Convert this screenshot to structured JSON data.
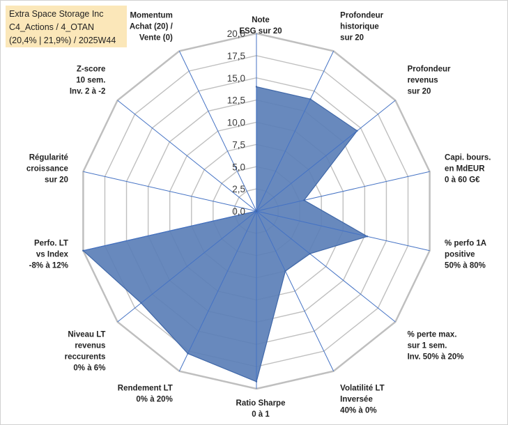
{
  "info": {
    "line1": "Extra Space Storage Inc",
    "line2": "C4_Actions / 4_OTAN",
    "line3": "(20,4% | 21,9%) / 2025W44"
  },
  "chart_data": {
    "type": "radar",
    "title": "",
    "rlim": [
      0,
      20
    ],
    "ticks": [
      "0,0",
      "2,5",
      "5,0",
      "7,5",
      "10,0",
      "12,5",
      "15,0",
      "17,5",
      "20,0"
    ],
    "categories": [
      [
        "Note",
        "ESG sur 20"
      ],
      [
        "Profondeur",
        "historique",
        "sur 20"
      ],
      [
        "Profondeur",
        "revenus",
        "sur 20"
      ],
      [
        "Capi. bours.",
        "en MdEUR",
        "0 à 60 G€"
      ],
      [
        "% perfo 1A",
        "positive",
        "50% à 80%"
      ],
      [
        "% perte max.",
        "sur 1 sem.",
        "Inv. 50% à 20%"
      ],
      [
        "Volatilité LT",
        "Inversée",
        "40% à 0%"
      ],
      [
        "Ratio Sharpe",
        "0 à 1"
      ],
      [
        "Rendement LT",
        "0% à 20%"
      ],
      [
        "Niveau LT",
        "revenus",
        "reccurents",
        "0% à 6%"
      ],
      [
        "Perfo. LT",
        "vs Index",
        "-8% à 12%"
      ],
      [
        "Régularité",
        "croissance",
        "sur 20"
      ],
      [
        "Z-score",
        "10 sem.",
        "Inv. 2 à -2"
      ],
      [
        "Momentum",
        "Achat (20) /",
        "Vente (0)"
      ]
    ],
    "series": [
      {
        "name": "Extra Space Storage Inc",
        "values": [
          14.0,
          14.0,
          14.5,
          5.5,
          12.8,
          7.7,
          7.5,
          19.2,
          17.8,
          16.6,
          20.0,
          0,
          0,
          0
        ],
        "color": "#5b7fb7"
      }
    ],
    "spoke_color": "#4472c4",
    "grid_color": "#bfbfbf"
  }
}
